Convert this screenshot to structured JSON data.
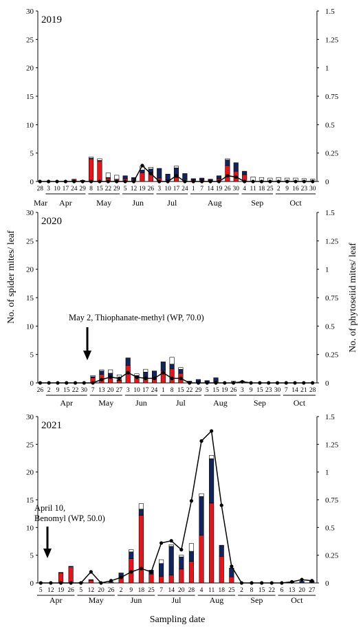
{
  "figure": {
    "y_left_label": "No. of spider mites/ leaf",
    "y_right_label": "No. of phytoseiid mites/ leaf",
    "x_label": "Sampling date",
    "colors": {
      "red_stack": "#e8141b",
      "blue_stack": "#12245e",
      "white_stack": "#ffffff",
      "line": "#000000"
    }
  },
  "chart_data": [
    {
      "type": "bar",
      "title": "2019",
      "ylim_left": [
        0,
        30
      ],
      "ylim_right": [
        0,
        1.5
      ],
      "yticks_left": [
        "0",
        "5",
        "10",
        "15",
        "20",
        "25",
        "30"
      ],
      "yticks_right": [
        "0",
        "0.25",
        "0.5",
        "0.75",
        "1",
        "1.25",
        "1.5"
      ],
      "dates": [
        "28",
        "3",
        "10",
        "17",
        "24",
        "29",
        "8",
        "15",
        "22",
        "29",
        "5",
        "12",
        "19",
        "26",
        "3",
        "10",
        "17",
        "24",
        "1",
        "7",
        "14",
        "19",
        "26",
        "30",
        "4",
        "11",
        "18",
        "25",
        "2",
        "9",
        "16",
        "23",
        "30"
      ],
      "months": [
        {
          "name": "Mar",
          "start": 0,
          "end": 0
        },
        {
          "name": "Apr",
          "start": 1,
          "end": 5
        },
        {
          "name": "May",
          "start": 6,
          "end": 9
        },
        {
          "name": "Jun",
          "start": 10,
          "end": 13
        },
        {
          "name": "Jul",
          "start": 14,
          "end": 17
        },
        {
          "name": "Aug",
          "start": 18,
          "end": 23
        },
        {
          "name": "Sep",
          "start": 24,
          "end": 27
        },
        {
          "name": "Oct",
          "start": 28,
          "end": 32
        }
      ],
      "series": [
        {
          "color": "red",
          "values": [
            0,
            0,
            0,
            0,
            0.4,
            0.2,
            4.0,
            3.6,
            0.6,
            0.4,
            0.5,
            0.4,
            1.5,
            1.6,
            0.6,
            0.3,
            0.7,
            0.4,
            0.3,
            0.3,
            0.2,
            0.5,
            2.8,
            1.8,
            1.2,
            0,
            0,
            0,
            0,
            0,
            0,
            0,
            0
          ]
        },
        {
          "color": "blue",
          "values": [
            0,
            0,
            0,
            0,
            0,
            0,
            0.1,
            0.1,
            0.1,
            0,
            0.5,
            0.3,
            0.5,
            0.6,
            1.7,
            1.0,
            1.7,
            1.0,
            0.2,
            0.3,
            0.2,
            0.5,
            1.0,
            1.5,
            0.6,
            0,
            0,
            0,
            0,
            0,
            0,
            0,
            0
          ]
        },
        {
          "color": "white",
          "values": [
            0,
            0,
            0,
            0,
            0,
            0,
            0.2,
            0.3,
            0.8,
            0.7,
            0,
            0,
            0.7,
            0.3,
            0,
            0,
            0.3,
            0,
            0,
            0,
            0,
            0,
            0.2,
            0,
            0,
            0.8,
            0.7,
            0.6,
            0.7,
            0.6,
            0.6,
            0.5,
            0.4
          ]
        }
      ],
      "line_values": [
        0,
        0,
        0,
        0,
        0,
        0,
        0,
        0,
        0,
        0,
        0,
        0,
        0.14,
        0.07,
        0,
        0,
        0.05,
        0,
        0,
        0,
        0,
        0,
        0.05,
        0.04,
        0,
        0,
        0,
        0,
        0,
        0,
        0,
        0,
        0
      ],
      "annotation": null
    },
    {
      "type": "bar",
      "title": "2020",
      "ylim_left": [
        0,
        30
      ],
      "ylim_right": [
        0,
        1.5
      ],
      "yticks_left": [
        "0",
        "5",
        "10",
        "15",
        "20",
        "25",
        "30"
      ],
      "yticks_right": [
        "0",
        "0.25",
        "0.5",
        "0.75",
        "1",
        "1.25",
        "1.5"
      ],
      "dates": [
        "26",
        "2",
        "9",
        "15",
        "22",
        "30",
        "7",
        "13",
        "20",
        "27",
        "3",
        "10",
        "17",
        "24",
        "1",
        "8",
        "15",
        "22",
        "29",
        "5",
        "15",
        "19",
        "26",
        "3",
        "9",
        "15",
        "23",
        "30",
        "7",
        "14",
        "21",
        "28"
      ],
      "months": [
        {
          "name": "Apr",
          "start": 1,
          "end": 5
        },
        {
          "name": "May",
          "start": 6,
          "end": 9
        },
        {
          "name": "Jun",
          "start": 10,
          "end": 13
        },
        {
          "name": "Jul",
          "start": 14,
          "end": 18
        },
        {
          "name": "Aug",
          "start": 19,
          "end": 22
        },
        {
          "name": "Sep",
          "start": 23,
          "end": 27
        },
        {
          "name": "Oct",
          "start": 28,
          "end": 31
        }
      ],
      "series": [
        {
          "color": "red",
          "values": [
            0,
            0,
            0,
            0,
            0,
            0,
            0.9,
            1.5,
            1.2,
            0.4,
            3.1,
            0.9,
            0.9,
            0.7,
            2.2,
            2.5,
            1.7,
            0.2,
            0.2,
            0,
            0.3,
            0,
            0,
            0,
            0,
            0,
            0,
            0,
            0,
            0,
            0,
            0
          ]
        },
        {
          "color": "blue",
          "values": [
            0,
            0,
            0,
            0,
            0,
            0,
            0.2,
            0.6,
            0.5,
            0.1,
            1.3,
            0.4,
            1.0,
            1.4,
            1.5,
            0.8,
            0.7,
            0.1,
            0.4,
            0.4,
            0.6,
            0,
            0,
            0,
            0,
            0,
            0,
            0,
            0,
            0,
            0,
            0
          ]
        },
        {
          "color": "white",
          "values": [
            0,
            0,
            0,
            0,
            0,
            0,
            0.2,
            0.2,
            0.6,
            0.9,
            0,
            0.3,
            0.5,
            0,
            0,
            1.2,
            0.3,
            0,
            0,
            0,
            0,
            0,
            0.3,
            0.3,
            0,
            0,
            0,
            0,
            0,
            0,
            0,
            0
          ]
        }
      ],
      "line_values": [
        0,
        0,
        0,
        0,
        0,
        0,
        0,
        0.03,
        0.05,
        0.04,
        0.09,
        0.05,
        0.04,
        0.04,
        0.09,
        0.04,
        0.04,
        0,
        0,
        0,
        0,
        0,
        0,
        0.01,
        0,
        0,
        0,
        0,
        0,
        0,
        0,
        0
      ],
      "annotation": {
        "text": "May 2, Thiophanate-methyl (WP, 70.0)",
        "at_index": 6
      }
    },
    {
      "type": "bar",
      "title": "2021",
      "ylim_left": [
        0,
        30
      ],
      "ylim_right": [
        0,
        1.5
      ],
      "yticks_left": [
        "0",
        "5",
        "10",
        "15",
        "20",
        "25",
        "30"
      ],
      "yticks_right": [
        "0",
        "0.25",
        "0.5",
        "0.75",
        "1",
        "1.25",
        "1.5"
      ],
      "dates": [
        "5",
        "12",
        "19",
        "26",
        "5",
        "12",
        "20",
        "26",
        "2",
        "9",
        "18",
        "25",
        "7",
        "14",
        "20",
        "28",
        "4",
        "11",
        "18",
        "25",
        "2",
        "8",
        "15",
        "22",
        "6",
        "13",
        "20",
        "27"
      ],
      "months": [
        {
          "name": "Apr",
          "start": 0,
          "end": 3
        },
        {
          "name": "May",
          "start": 4,
          "end": 7
        },
        {
          "name": "Jun",
          "start": 8,
          "end": 11
        },
        {
          "name": "Jul",
          "start": 12,
          "end": 15
        },
        {
          "name": "Aug",
          "start": 16,
          "end": 19
        },
        {
          "name": "Sep",
          "start": 20,
          "end": 23
        },
        {
          "name": "Oct",
          "start": 24,
          "end": 27
        }
      ],
      "series": [
        {
          "color": "red",
          "values": [
            0,
            0,
            1.8,
            2.9,
            0.1,
            0.5,
            0.1,
            0.2,
            1.0,
            4.4,
            12.2,
            1.6,
            1.2,
            1.4,
            2.5,
            3.9,
            8.6,
            14.4,
            4.8,
            1.1,
            0,
            0,
            0,
            0,
            0,
            0,
            0,
            0
          ]
        },
        {
          "color": "blue",
          "values": [
            0,
            0,
            0.1,
            0.1,
            0,
            0.1,
            0,
            0,
            0.8,
            1.2,
            1.1,
            0.7,
            2.3,
            5.2,
            2.2,
            1.8,
            7.0,
            8.0,
            2.0,
            1.6,
            0,
            0,
            0,
            0,
            0,
            0.2,
            0.3,
            0.4
          ]
        },
        {
          "color": "white",
          "values": [
            0,
            0,
            0,
            0,
            0,
            0,
            0,
            0,
            0,
            0.4,
            1.0,
            0,
            0.7,
            0.3,
            0.3,
            1.4,
            0.5,
            0.6,
            0,
            0,
            0,
            0,
            0,
            0,
            0,
            0,
            0,
            0
          ]
        }
      ],
      "line_values": [
        0,
        0,
        0,
        0,
        0,
        0.1,
        0,
        0.02,
        0.05,
        0.1,
        0.13,
        0.1,
        0.36,
        0.38,
        0.3,
        0.74,
        1.28,
        1.37,
        0.7,
        0.15,
        0,
        0,
        0,
        0,
        0,
        0.01,
        0.03,
        0.02
      ],
      "annotation": {
        "text_line1": "April 10,",
        "text_line2": "Benomyl (WP, 50.0)",
        "at_index": 1
      }
    }
  ]
}
